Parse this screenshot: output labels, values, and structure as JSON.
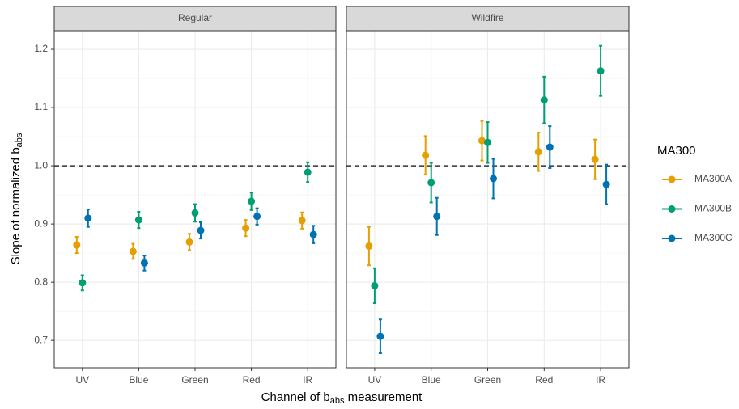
{
  "chart_data": {
    "type": "errorbar",
    "x_label": [
      "Channel of b",
      "abs",
      " measurement"
    ],
    "y_label": [
      "Slope of normalized b",
      "abs"
    ],
    "legend_title": "MA300",
    "categories": [
      "UV",
      "Blue",
      "Green",
      "Red",
      "IR"
    ],
    "ylim": [
      0.653,
      1.232
    ],
    "yticks": [
      0.7,
      0.8,
      0.9,
      {
        "value": 1,
        "label": "1.0"
      },
      1.1,
      1.2
    ],
    "minor_yticks": [
      0.75,
      0.85,
      0.95,
      1.05,
      1.15
    ],
    "hline": 1,
    "grid": true,
    "panels": [
      {
        "title": "Regular",
        "series": [
          {
            "name": "MA300A",
            "color": "#E69F00",
            "values": [
              0.864,
              0.853,
              0.869,
              0.893,
              0.906
            ],
            "errors": [
              0.014,
              0.013,
              0.014,
              0.014,
              0.014
            ]
          },
          {
            "name": "MA300B",
            "color": "#009E73",
            "values": [
              0.799,
              0.907,
              0.919,
              0.939,
              0.989
            ],
            "errors": [
              0.013,
              0.014,
              0.015,
              0.015,
              0.017
            ]
          },
          {
            "name": "MA300C",
            "color": "#0072B2",
            "values": [
              0.91,
              0.833,
              0.889,
              0.913,
              0.882
            ],
            "errors": [
              0.015,
              0.013,
              0.014,
              0.014,
              0.015
            ]
          }
        ]
      },
      {
        "title": "Wildfire",
        "series": [
          {
            "name": "MA300A",
            "color": "#E69F00",
            "values": [
              0.862,
              1.018,
              1.043,
              1.024,
              1.011
            ],
            "errors": [
              0.033,
              0.033,
              0.034,
              0.033,
              0.034
            ]
          },
          {
            "name": "MA300B",
            "color": "#009E73",
            "values": [
              0.794,
              0.971,
              1.04,
              1.113,
              1.163
            ],
            "errors": [
              0.03,
              0.034,
              0.035,
              0.04,
              0.043
            ]
          },
          {
            "name": "MA300C",
            "color": "#0072B2",
            "values": [
              0.707,
              0.913,
              0.978,
              1.032,
              0.968
            ],
            "errors": [
              0.029,
              0.032,
              0.034,
              0.036,
              0.034
            ]
          }
        ]
      }
    ]
  }
}
